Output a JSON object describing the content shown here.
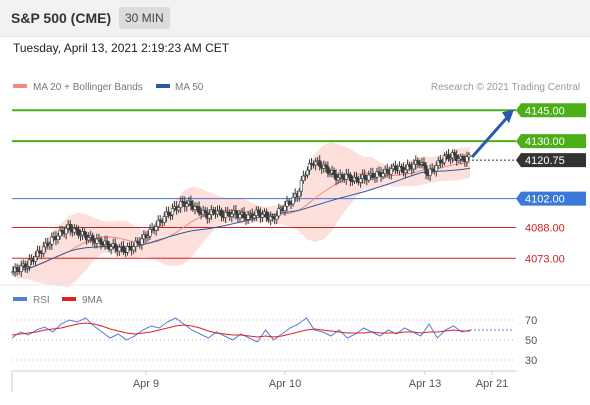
{
  "header": {
    "title": "S&P 500 (CME)",
    "interval": "30 MIN"
  },
  "datetime": "Tuesday, April 13, 2021 2:19:23 AM CET",
  "legend": {
    "ma20_label": "MA 20 + Bollinger Bands",
    "ma50_label": "MA 50",
    "credit": "Research © 2021 Trading Central",
    "rsi_label": "RSI",
    "ma9_label": "9MA"
  },
  "colors": {
    "resistance": "#4caf17",
    "current": "#333333",
    "support_pivot": "#3b78d8",
    "support": "#cc2222",
    "candle": "#3a3a3a",
    "bollinger_fill": "#fde0dc",
    "ma20": "#f08a80",
    "ma50": "#2d5a9a",
    "rsi": "#4f7fd8",
    "ma9": "#dd2222",
    "arrow": "#2a5aa8"
  },
  "chart_data": [
    {
      "type": "candlestick",
      "ylim": [
        4060,
        4150
      ],
      "x_tick_labels": [
        "Apr 9",
        "Apr 10",
        "Apr 13",
        "Apr 21"
      ],
      "levels": [
        {
          "value": 4145.0,
          "label": "4145.00",
          "kind": "resistance"
        },
        {
          "value": 4130.0,
          "label": "4130.00",
          "kind": "resistance"
        },
        {
          "value": 4120.75,
          "label": "4120.75",
          "kind": "current"
        },
        {
          "value": 4102.0,
          "label": "4102.00",
          "kind": "pivot"
        },
        {
          "value": 4088.0,
          "label": "4088.00",
          "kind": "support"
        },
        {
          "value": 4073.0,
          "label": "4073.00",
          "kind": "support"
        }
      ],
      "series": [
        {
          "name": "MA 20 + Bollinger Bands"
        },
        {
          "name": "MA 50"
        }
      ],
      "close_path": [
        4066,
        4068,
        4070,
        4074,
        4078,
        4082,
        4085,
        4088,
        4086,
        4084,
        4082,
        4081,
        4079,
        4078,
        4077,
        4079,
        4082,
        4086,
        4090,
        4094,
        4097,
        4100,
        4099,
        4096,
        4094,
        4096,
        4094,
        4095,
        4094,
        4093,
        4095,
        4094,
        4092,
        4097,
        4100,
        4104,
        4115,
        4120,
        4118,
        4115,
        4112,
        4113,
        4111,
        4112,
        4113,
        4114,
        4115,
        4117,
        4116,
        4118,
        4120,
        4114,
        4118,
        4122,
        4123,
        4121,
        4122
      ]
    },
    {
      "type": "line",
      "ylim": [
        20,
        80
      ],
      "y_tick_labels": [
        "70",
        "50",
        "30"
      ],
      "y_tick_values": [
        70,
        50,
        30
      ],
      "series": [
        {
          "name": "RSI",
          "values": [
            52,
            58,
            55,
            60,
            63,
            58,
            66,
            70,
            68,
            72,
            64,
            58,
            52,
            56,
            50,
            54,
            60,
            64,
            62,
            68,
            72,
            66,
            60,
            56,
            52,
            58,
            54,
            50,
            56,
            52,
            48,
            60,
            50,
            56,
            62,
            66,
            72,
            60,
            58,
            54,
            60,
            52,
            56,
            62,
            58,
            54,
            60,
            56,
            62,
            58,
            54,
            66,
            52,
            60,
            64,
            58,
            60
          ]
        },
        {
          "name": "9MA",
          "values": [
            55,
            56,
            57,
            58,
            60,
            61,
            62,
            64,
            66,
            67,
            66,
            64,
            61,
            59,
            57,
            56,
            57,
            58,
            60,
            62,
            64,
            65,
            64,
            62,
            59,
            57,
            56,
            55,
            55,
            54,
            53,
            54,
            53,
            54,
            56,
            58,
            60,
            61,
            60,
            59,
            58,
            57,
            57,
            57,
            58,
            57,
            57,
            57,
            58,
            58,
            57,
            58,
            58,
            59,
            60,
            59,
            59
          ]
        }
      ]
    }
  ]
}
